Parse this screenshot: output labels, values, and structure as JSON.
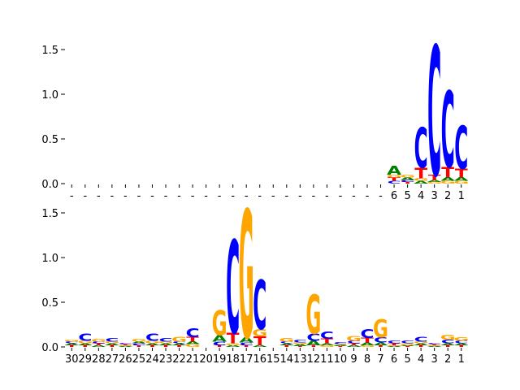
{
  "colors": {
    "A": "#008000",
    "C": "#0000ff",
    "G": "#ffa500",
    "T": "#ff0000"
  },
  "chart_data": [
    {
      "type": "sequence-logo",
      "yticks": [
        "0.0",
        "0.5",
        "1.0",
        "1.5"
      ],
      "ylim": [
        0,
        1.6
      ],
      "positions": [
        "-",
        "-",
        "-",
        "-",
        "-",
        "-",
        "-",
        "-",
        "-",
        "-",
        "-",
        "-",
        "-",
        "-",
        "-",
        "-",
        "-",
        "-",
        "-",
        "-",
        "-",
        "-",
        "-",
        "-",
        "6",
        "5",
        "4",
        "3",
        "2",
        "1"
      ],
      "stacks": [
        [],
        [],
        [],
        [],
        [],
        [],
        [],
        [],
        [],
        [],
        [],
        [],
        [],
        [],
        [],
        [],
        [],
        [],
        [],
        [],
        [],
        [],
        [],
        [],
        [
          [
            "C",
            0.03
          ],
          [
            "T",
            0.04
          ],
          [
            "G",
            0.03
          ],
          [
            "A",
            0.1
          ]
        ],
        [
          [
            "T",
            0.02
          ],
          [
            "C",
            0.02
          ],
          [
            "A",
            0.03
          ],
          [
            "G",
            0.03
          ]
        ],
        [
          [
            "A",
            0.03
          ],
          [
            "G",
            0.03
          ],
          [
            "T",
            0.12
          ],
          [
            "C",
            0.45
          ]
        ],
        [
          [
            "G",
            0.02
          ],
          [
            "A",
            0.02
          ],
          [
            "T",
            0.06
          ],
          [
            "C",
            1.45
          ]
        ],
        [
          [
            "G",
            0.03
          ],
          [
            "A",
            0.04
          ],
          [
            "T",
            0.12
          ],
          [
            "C",
            0.85
          ]
        ],
        [
          [
            "G",
            0.03
          ],
          [
            "A",
            0.04
          ],
          [
            "T",
            0.1
          ],
          [
            "C",
            0.48
          ]
        ]
      ]
    },
    {
      "type": "sequence-logo",
      "yticks": [
        "0.0",
        "0.5",
        "1.0",
        "1.5"
      ],
      "ylim": [
        0,
        1.6
      ],
      "positions": [
        "30",
        "29",
        "28",
        "27",
        "26",
        "25",
        "24",
        "23",
        "22",
        "21",
        "20",
        "19",
        "18",
        "17",
        "16",
        "15",
        "14",
        "13",
        "12",
        "11",
        "10",
        "9",
        "8",
        "7",
        "6",
        "5",
        "4",
        "3",
        "2",
        "1"
      ],
      "stacks": [
        [
          [
            "T",
            0.02
          ],
          [
            "A",
            0.02
          ],
          [
            "C",
            0.02
          ],
          [
            "G",
            0.02
          ]
        ],
        [
          [
            "T",
            0.02
          ],
          [
            "A",
            0.02
          ],
          [
            "G",
            0.03
          ],
          [
            "C",
            0.08
          ]
        ],
        [
          [
            "A",
            0.02
          ],
          [
            "T",
            0.02
          ],
          [
            "C",
            0.02
          ],
          [
            "G",
            0.03
          ]
        ],
        [
          [
            "T",
            0.02
          ],
          [
            "A",
            0.02
          ],
          [
            "G",
            0.02
          ],
          [
            "C",
            0.04
          ]
        ],
        [
          [
            "A",
            0.01
          ],
          [
            "G",
            0.01
          ],
          [
            "T",
            0.01
          ],
          [
            "C",
            0.01
          ]
        ],
        [
          [
            "T",
            0.02
          ],
          [
            "C",
            0.02
          ],
          [
            "A",
            0.02
          ],
          [
            "G",
            0.03
          ]
        ],
        [
          [
            "T",
            0.02
          ],
          [
            "A",
            0.02
          ],
          [
            "G",
            0.03
          ],
          [
            "C",
            0.08
          ]
        ],
        [
          [
            "T",
            0.02
          ],
          [
            "A",
            0.02
          ],
          [
            "G",
            0.02
          ],
          [
            "C",
            0.04
          ]
        ],
        [
          [
            "T",
            0.02
          ],
          [
            "A",
            0.02
          ],
          [
            "C",
            0.02
          ],
          [
            "G",
            0.05
          ]
        ],
        [
          [
            "G",
            0.03
          ],
          [
            "A",
            0.03
          ],
          [
            "T",
            0.05
          ],
          [
            "C",
            0.1
          ]
        ],
        [
          [
            "A",
            0.0
          ],
          [
            "C",
            0.0
          ],
          [
            "G",
            0.0
          ],
          [
            "T",
            0.0
          ]
        ],
        [
          [
            "T",
            0.02
          ],
          [
            "C",
            0.04
          ],
          [
            "A",
            0.07
          ],
          [
            "G",
            0.28
          ]
        ],
        [
          [
            "A",
            0.02
          ],
          [
            "G",
            0.02
          ],
          [
            "T",
            0.12
          ],
          [
            "C",
            1.04
          ]
        ],
        [
          [
            "T",
            0.02
          ],
          [
            "C",
            0.03
          ],
          [
            "A",
            0.06
          ],
          [
            "G",
            1.43
          ]
        ],
        [
          [
            "A",
            0.02
          ],
          [
            "T",
            0.1
          ],
          [
            "G",
            0.08
          ],
          [
            "C",
            0.55
          ]
        ],
        [
          [
            "A",
            0.0
          ],
          [
            "C",
            0.0
          ],
          [
            "G",
            0.0
          ],
          [
            "T",
            0.0
          ]
        ],
        [
          [
            "T",
            0.02
          ],
          [
            "A",
            0.02
          ],
          [
            "C",
            0.02
          ],
          [
            "G",
            0.04
          ]
        ],
        [
          [
            "T",
            0.01
          ],
          [
            "A",
            0.02
          ],
          [
            "G",
            0.02
          ],
          [
            "C",
            0.03
          ]
        ],
        [
          [
            "T",
            0.02
          ],
          [
            "A",
            0.05
          ],
          [
            "C",
            0.08
          ],
          [
            "G",
            0.44
          ]
        ],
        [
          [
            "G",
            0.02
          ],
          [
            "A",
            0.02
          ],
          [
            "T",
            0.05
          ],
          [
            "C",
            0.08
          ]
        ],
        [
          [
            "T",
            0.01
          ],
          [
            "A",
            0.01
          ],
          [
            "G",
            0.01
          ],
          [
            "C",
            0.02
          ]
        ],
        [
          [
            "A",
            0.02
          ],
          [
            "T",
            0.02
          ],
          [
            "C",
            0.03
          ],
          [
            "G",
            0.05
          ]
        ],
        [
          [
            "G",
            0.02
          ],
          [
            "A",
            0.03
          ],
          [
            "T",
            0.05
          ],
          [
            "C",
            0.1
          ]
        ],
        [
          [
            "T",
            0.02
          ],
          [
            "A",
            0.03
          ],
          [
            "C",
            0.06
          ],
          [
            "G",
            0.2
          ]
        ],
        [
          [
            "A",
            0.01
          ],
          [
            "G",
            0.01
          ],
          [
            "T",
            0.02
          ],
          [
            "C",
            0.03
          ]
        ],
        [
          [
            "T",
            0.01
          ],
          [
            "A",
            0.01
          ],
          [
            "G",
            0.02
          ],
          [
            "C",
            0.03
          ]
        ],
        [
          [
            "T",
            0.02
          ],
          [
            "A",
            0.02
          ],
          [
            "G",
            0.02
          ],
          [
            "C",
            0.05
          ]
        ],
        [
          [
            "A",
            0.01
          ],
          [
            "G",
            0.01
          ],
          [
            "T",
            0.01
          ],
          [
            "C",
            0.01
          ]
        ],
        [
          [
            "T",
            0.02
          ],
          [
            "A",
            0.02
          ],
          [
            "C",
            0.04
          ],
          [
            "G",
            0.05
          ]
        ],
        [
          [
            "T",
            0.02
          ],
          [
            "A",
            0.02
          ],
          [
            "C",
            0.03
          ],
          [
            "G",
            0.04
          ]
        ]
      ]
    }
  ]
}
